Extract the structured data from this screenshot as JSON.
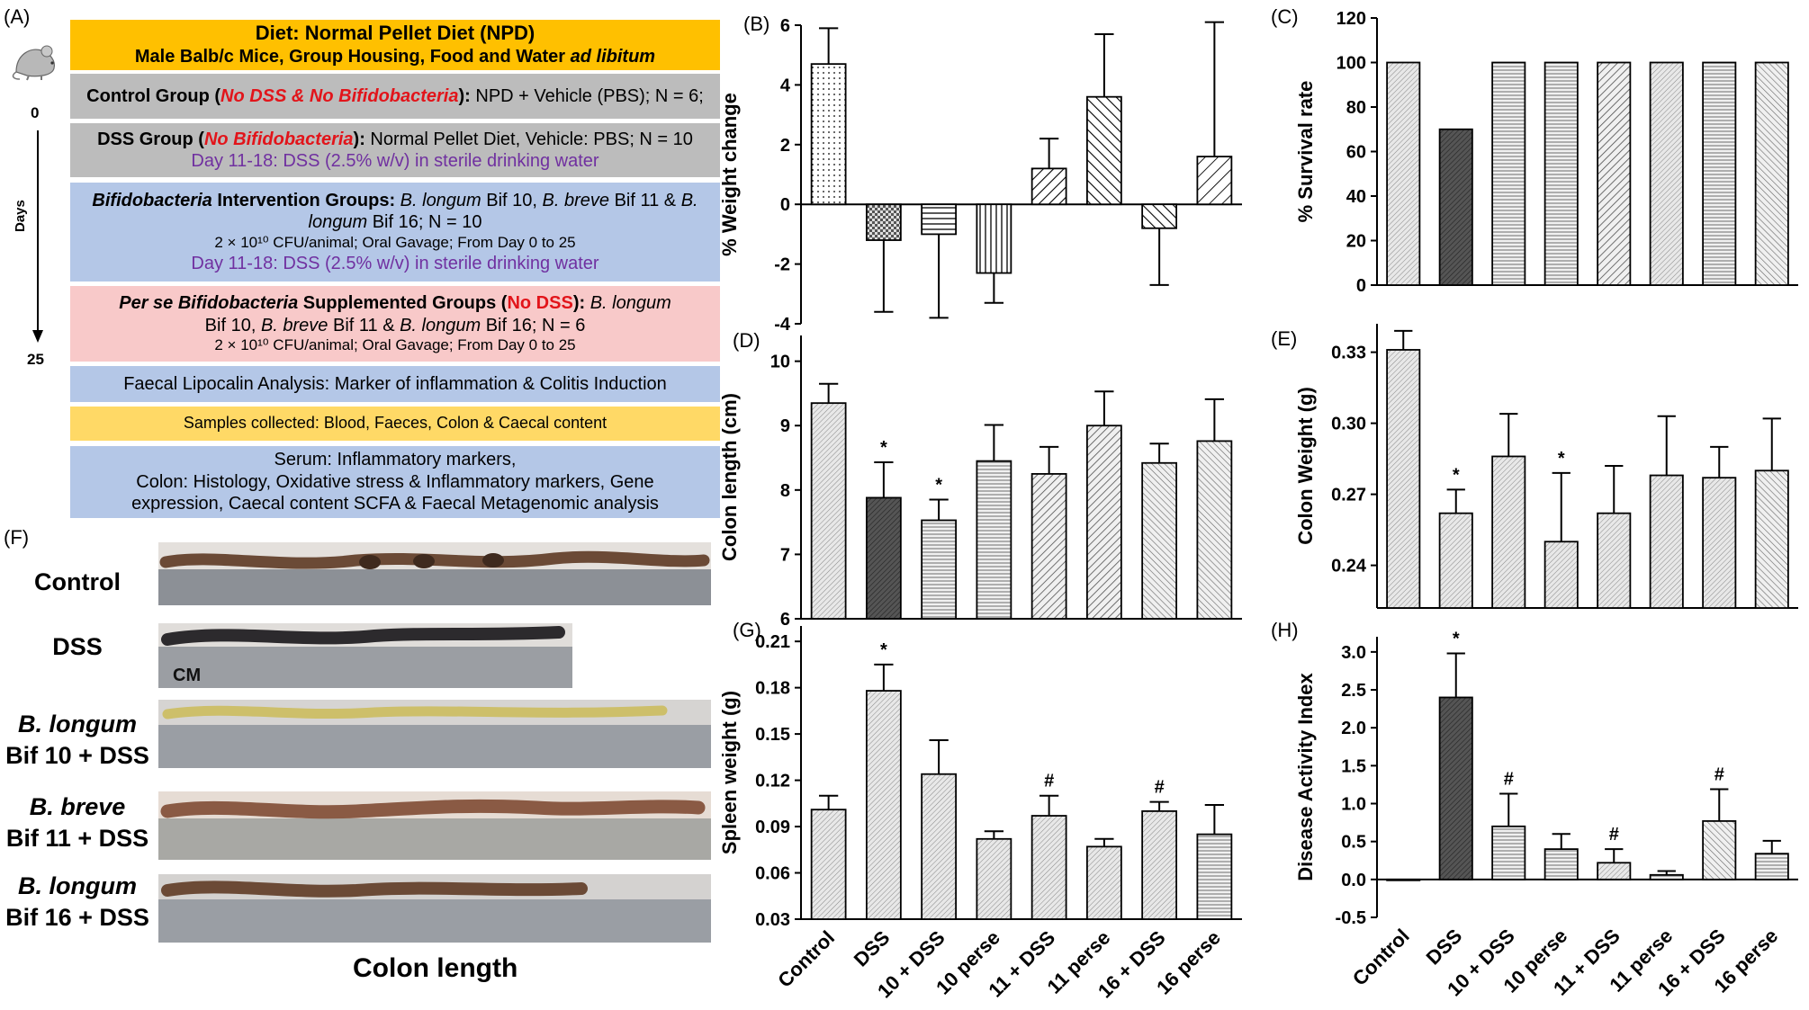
{
  "panel_labels": {
    "A": "(A)",
    "B": "(B)",
    "C": "(C)",
    "D": "(D)",
    "E": "(E)",
    "F": "(F)",
    "G": "(G)",
    "H": "(H)"
  },
  "timeline": {
    "start": "0",
    "axis": "Days",
    "end": "25"
  },
  "protocol": {
    "diet_title": "Diet: Normal Pellet Diet (NPD)",
    "diet_sub_1": "Male Balb/c Mice, Group Housing, Food and Water",
    "diet_sub_2": "ad libitum",
    "control_1": "Control Group (",
    "control_red": "No DSS & No Bifidobacteria",
    "control_2": "):",
    "control_3": " NPD + Vehicle (PBS); N = 6;",
    "dss_1": "DSS Group (",
    "dss_red": "No Bifidobacteria",
    "dss_2": "):",
    "dss_3": " Normal Pellet Diet, Vehicle: PBS; N = 10",
    "dss_purple": "Day 11-18: DSS (2.5% w/v) in sterile drinking water",
    "int_1": "Bifidobacteria",
    "int_2": " Intervention Groups:",
    "int_3": " B. longum",
    "int_4": " Bif 10, ",
    "int_5": "B. breve",
    "int_6": " Bif 11 & ",
    "int_7": "B.",
    "int_8": "longum",
    "int_9": " Bif 16; N = 10",
    "int_dose": "2 × 10¹⁰ CFU/animal; Oral Gavage; From Day 0 to 25",
    "int_purple": "Day 11-18: DSS (2.5% w/v) in sterile drinking water",
    "perse_1": "Per se Bifidobacteria",
    "perse_2": " Supplemented Groups (",
    "perse_red": "No DSS",
    "perse_3": "):",
    "perse_4": " B. longum",
    "perse_5": "Bif 10, ",
    "perse_6": "B. breve",
    "perse_7": " Bif 11 & ",
    "perse_8": "B. longum",
    "perse_9": " Bif 16; N = 6",
    "perse_dose": "2 × 10¹⁰ CFU/animal; Oral Gavage; From Day 0 to 25",
    "lipocalin": "Faecal Lipocalin Analysis: Marker of inflammation & Colitis Induction",
    "samples": "Samples collected: Blood, Faeces, Colon & Caecal content",
    "serum_1": "Serum: Inflammatory markers,",
    "serum_2": "Colon: Histology, Oxidative stress & Inflammatory markers, Gene",
    "serum_3": "expression, Caecal content SCFA & Faecal Metagenomic analysis"
  },
  "colon_photos": {
    "labels": [
      {
        "l1": "Control",
        "l2": ""
      },
      {
        "l1": "DSS",
        "l2": ""
      },
      {
        "l1": "B. longum",
        "l2": "Bif 10 + DSS"
      },
      {
        "l1": "B. breve",
        "l2": "Bif 11 + DSS"
      },
      {
        "l1": "B. longum",
        "l2": "Bif 16 + DSS"
      }
    ],
    "cm_label": "CM",
    "caption": "Colon length"
  },
  "chart_data": [
    {
      "panel": "B",
      "type": "bar",
      "ylabel": "% Weight change",
      "ylim": [
        -4,
        6
      ],
      "ticks": [
        -4,
        -2,
        0,
        2,
        4,
        6
      ],
      "values": [
        4.7,
        -1.2,
        -1.0,
        -2.3,
        1.2,
        3.6,
        -0.8,
        1.6
      ],
      "errors": [
        1.2,
        2.4,
        2.8,
        1.0,
        1.0,
        2.1,
        1.9,
        4.5
      ],
      "markers": [
        "",
        "",
        "",
        "",
        "",
        "",
        "",
        ""
      ]
    },
    {
      "panel": "C",
      "type": "bar",
      "ylabel": "% Survival rate",
      "ylim": [
        0,
        120
      ],
      "ticks": [
        0,
        20,
        40,
        60,
        80,
        100,
        120
      ],
      "values": [
        100,
        70,
        100,
        100,
        100,
        100,
        100,
        100
      ],
      "errors": [
        0,
        0,
        0,
        0,
        0,
        0,
        0,
        0
      ],
      "markers": [
        "",
        "",
        "",
        "",
        "",
        "",
        "",
        ""
      ]
    },
    {
      "panel": "D",
      "type": "bar",
      "ylabel": "Colon length (cm)",
      "ylim": [
        6,
        10.4
      ],
      "ticks": [
        6,
        7,
        8,
        9,
        10
      ],
      "values": [
        9.35,
        7.88,
        7.53,
        8.45,
        8.25,
        9.0,
        8.42,
        8.76
      ],
      "errors": [
        0.3,
        0.55,
        0.32,
        0.56,
        0.42,
        0.53,
        0.3,
        0.65
      ],
      "markers": [
        "",
        "*",
        "*",
        "",
        "",
        "",
        "",
        ""
      ]
    },
    {
      "panel": "E",
      "type": "bar",
      "ylabel": "Colon Weight (g)",
      "ylim": [
        0.222,
        0.342
      ],
      "ticks": [
        0.24,
        0.27,
        0.3,
        0.33
      ],
      "values": [
        0.331,
        0.262,
        0.286,
        0.25,
        0.262,
        0.278,
        0.277,
        0.28
      ],
      "errors": [
        0.008,
        0.01,
        0.018,
        0.029,
        0.02,
        0.025,
        0.013,
        0.022
      ],
      "markers": [
        "",
        "*",
        "",
        "*",
        "",
        "",
        "",
        ""
      ]
    },
    {
      "panel": "G",
      "type": "bar",
      "ylabel": "Spleen weight (g)",
      "ylim": [
        0.03,
        0.22
      ],
      "ticks": [
        0.03,
        0.06,
        0.09,
        0.12,
        0.15,
        0.18,
        0.21
      ],
      "values": [
        0.101,
        0.178,
        0.124,
        0.082,
        0.097,
        0.077,
        0.1,
        0.085
      ],
      "errors": [
        0.009,
        0.017,
        0.022,
        0.005,
        0.013,
        0.005,
        0.006,
        0.019
      ],
      "markers": [
        "",
        "*",
        "",
        "",
        "#",
        "",
        "#",
        ""
      ]
    },
    {
      "panel": "H",
      "type": "bar",
      "ylabel": "Disease Activity Index",
      "ylim": [
        -0.5,
        3.2
      ],
      "ticks": [
        -0.5,
        0.0,
        0.5,
        1.0,
        1.5,
        2.0,
        2.5,
        3.0
      ],
      "values": [
        0.0,
        2.4,
        0.7,
        0.4,
        0.22,
        0.06,
        0.77,
        0.34
      ],
      "errors": [
        0,
        0.58,
        0.43,
        0.2,
        0.18,
        0.05,
        0.42,
        0.17
      ],
      "markers": [
        "",
        "*",
        "#",
        "",
        "#",
        "",
        "#",
        ""
      ]
    }
  ],
  "categories": [
    "Control",
    "DSS",
    "10 + DSS",
    "10 perse",
    "11 + DSS",
    "11 perse",
    "16 + DSS",
    "16 perse"
  ]
}
